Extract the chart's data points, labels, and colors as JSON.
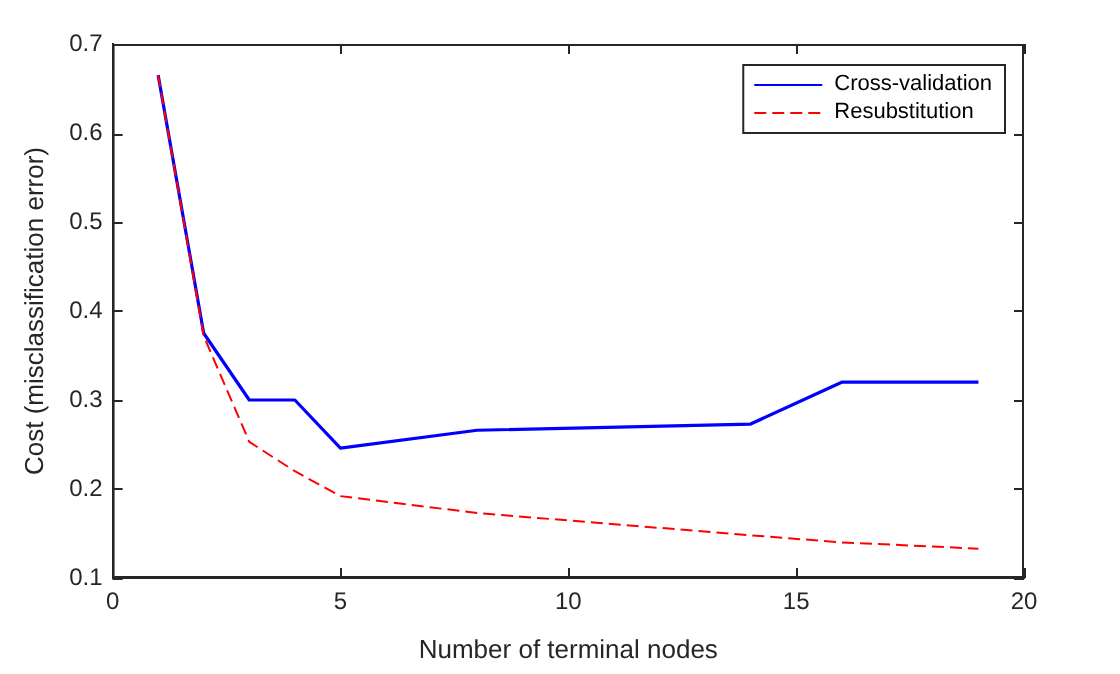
{
  "chart_data": {
    "type": "line",
    "xlabel": "Number of terminal nodes",
    "ylabel": "Cost (misclassification error)",
    "xlim": [
      0,
      20
    ],
    "xticks": [
      0,
      5,
      10,
      15,
      20
    ],
    "ylim": [
      0.1,
      0.7
    ],
    "yticks": [
      0.1,
      0.2,
      0.3,
      0.4,
      0.5,
      0.6,
      0.7
    ],
    "grid": false,
    "legend": "top right",
    "marker": "none",
    "series": [
      {
        "name": "Cross-validation",
        "color": "#0000ff",
        "line_style": "solid",
        "x": [
          1,
          2,
          3,
          4,
          5,
          8,
          14,
          16,
          19
        ],
        "values": [
          0.665,
          0.375,
          0.3,
          0.3,
          0.246,
          0.266,
          0.273,
          0.32,
          0.32
        ]
      },
      {
        "name": "Resubstitution",
        "color": "#ff0000",
        "line_style": "dashed",
        "x": [
          1,
          2,
          3,
          4,
          5,
          8,
          14,
          16,
          19
        ],
        "values": [
          0.665,
          0.372,
          0.253,
          0.22,
          0.192,
          0.173,
          0.148,
          0.14,
          0.133
        ]
      }
    ]
  }
}
